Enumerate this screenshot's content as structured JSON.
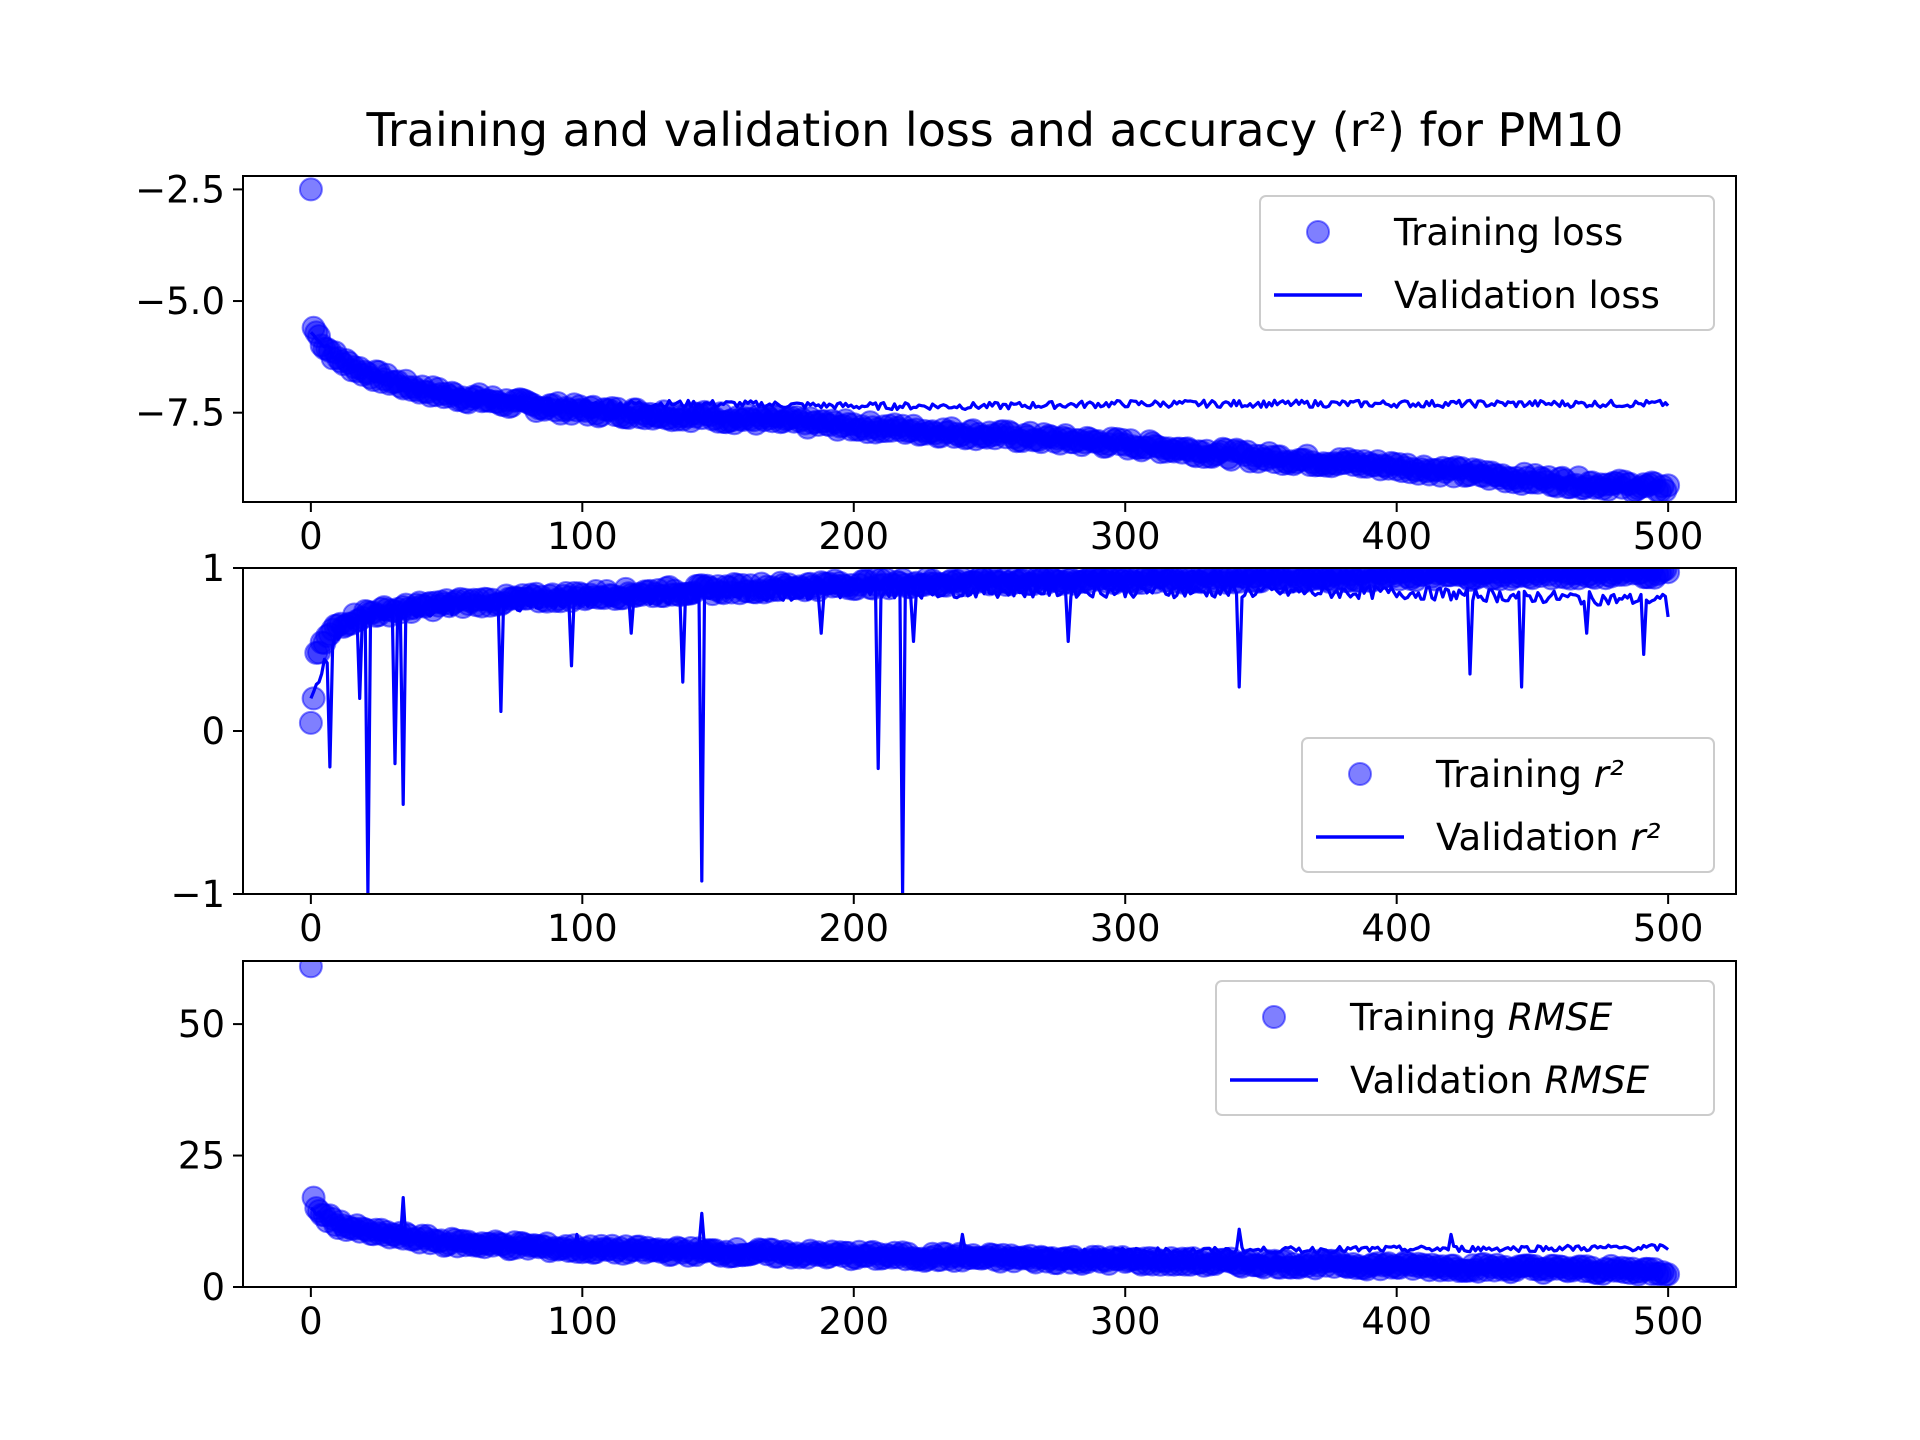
{
  "figure_title": "Training and validation loss and accuracy",
  "figure_title_math": "(r²)",
  "figure_title_suffix": "for PM10",
  "colors": {
    "series": "#0000ff",
    "axes": "#000000",
    "legend_frame": "#cccccc"
  },
  "chart_data": [
    {
      "type": "line",
      "panel": "loss",
      "xlim": [
        -25,
        525
      ],
      "ylim": [
        -9.5,
        -2.2
      ],
      "xticks": [
        0,
        100,
        200,
        300,
        400,
        500
      ],
      "yticks": [
        -2.5,
        -5.0,
        -7.5
      ],
      "ytick_labels": [
        "−2.5",
        "−5.0",
        "−7.5"
      ],
      "legend_position": "upper right",
      "series": [
        {
          "name": "Training loss",
          "style": "markers",
          "anchors": [
            [
              0,
              -2.5
            ],
            [
              1,
              -5.6
            ],
            [
              5,
              -6.0
            ],
            [
              10,
              -6.3
            ],
            [
              20,
              -6.6
            ],
            [
              35,
              -6.9
            ],
            [
              50,
              -7.1
            ],
            [
              75,
              -7.3
            ],
            [
              100,
              -7.45
            ],
            [
              150,
              -7.6
            ],
            [
              200,
              -7.8
            ],
            [
              250,
              -8.0
            ],
            [
              300,
              -8.2
            ],
            [
              350,
              -8.5
            ],
            [
              400,
              -8.7
            ],
            [
              450,
              -9.0
            ],
            [
              500,
              -9.2
            ]
          ],
          "noise": 0.12
        },
        {
          "name": "Validation loss",
          "style": "line",
          "anchors": [
            [
              0,
              -5.7
            ],
            [
              5,
              -6.0
            ],
            [
              10,
              -6.3
            ],
            [
              20,
              -6.6
            ],
            [
              35,
              -6.9
            ],
            [
              50,
              -7.0
            ],
            [
              75,
              -7.2
            ],
            [
              100,
              -7.3
            ],
            [
              150,
              -7.3
            ],
            [
              200,
              -7.35
            ],
            [
              250,
              -7.35
            ],
            [
              300,
              -7.3
            ],
            [
              350,
              -7.3
            ],
            [
              400,
              -7.3
            ],
            [
              450,
              -7.3
            ],
            [
              500,
              -7.3
            ]
          ],
          "noise": 0.08
        }
      ]
    },
    {
      "type": "line",
      "panel": "r2",
      "xlim": [
        -25,
        525
      ],
      "ylim": [
        -1,
        1
      ],
      "xticks": [
        0,
        100,
        200,
        300,
        400,
        500
      ],
      "yticks": [
        1,
        0,
        -1
      ],
      "ytick_labels": [
        "1",
        "0",
        "−1"
      ],
      "legend_position": "lower right",
      "series": [
        {
          "name": "Training",
          "name_math": "r²",
          "style": "markers",
          "anchors": [
            [
              0,
              0.05
            ],
            [
              1,
              0.2
            ],
            [
              2,
              0.45
            ],
            [
              5,
              0.55
            ],
            [
              10,
              0.65
            ],
            [
              20,
              0.72
            ],
            [
              50,
              0.78
            ],
            [
              100,
              0.83
            ],
            [
              150,
              0.87
            ],
            [
              200,
              0.9
            ],
            [
              250,
              0.92
            ],
            [
              300,
              0.93
            ],
            [
              400,
              0.95
            ],
            [
              500,
              0.97
            ]
          ],
          "noise": 0.03
        },
        {
          "name": "Validation",
          "name_math": "r²",
          "style": "line",
          "anchors": [
            [
              0,
              0.2
            ],
            [
              10,
              0.6
            ],
            [
              20,
              0.7
            ],
            [
              50,
              0.75
            ],
            [
              100,
              0.8
            ],
            [
              150,
              0.83
            ],
            [
              200,
              0.85
            ],
            [
              250,
              0.86
            ],
            [
              300,
              0.86
            ],
            [
              400,
              0.85
            ],
            [
              500,
              0.8
            ]
          ],
          "noise": 0.04,
          "spikes": [
            [
              3,
              0.3
            ],
            [
              7,
              -0.22
            ],
            [
              18,
              0.2
            ],
            [
              21,
              -1.0
            ],
            [
              31,
              -0.2
            ],
            [
              34,
              -0.45
            ],
            [
              70,
              0.12
            ],
            [
              96,
              0.4
            ],
            [
              118,
              0.6
            ],
            [
              137,
              0.3
            ],
            [
              144,
              -0.92
            ],
            [
              188,
              0.6
            ],
            [
              209,
              -0.23
            ],
            [
              218,
              -1.0
            ],
            [
              222,
              0.55
            ],
            [
              279,
              0.55
            ],
            [
              342,
              0.27
            ],
            [
              427,
              0.35
            ],
            [
              446,
              0.27
            ],
            [
              470,
              0.6
            ],
            [
              491,
              0.47
            ],
            [
              500,
              0.7
            ]
          ]
        }
      ]
    },
    {
      "type": "line",
      "panel": "rmse",
      "xlim": [
        -25,
        525
      ],
      "ylim": [
        0,
        62
      ],
      "xticks": [
        0,
        100,
        200,
        300,
        400,
        500
      ],
      "yticks": [
        0,
        25,
        50
      ],
      "ytick_labels": [
        "0",
        "25",
        "50"
      ],
      "legend_position": "upper right",
      "series": [
        {
          "name": "Training",
          "name_math": "RMSE",
          "style": "markers",
          "anchors": [
            [
              0,
              61
            ],
            [
              1,
              17
            ],
            [
              3,
              14
            ],
            [
              10,
              12
            ],
            [
              20,
              10.5
            ],
            [
              50,
              8.5
            ],
            [
              100,
              7.2
            ],
            [
              200,
              6
            ],
            [
              300,
              5
            ],
            [
              400,
              4
            ],
            [
              500,
              3
            ]
          ],
          "noise": 0.8
        },
        {
          "name": "Validation",
          "name_math": "RMSE",
          "style": "line",
          "anchors": [
            [
              0,
              15
            ],
            [
              5,
              13
            ],
            [
              10,
              11.5
            ],
            [
              20,
              10
            ],
            [
              50,
              8.6
            ],
            [
              100,
              7.5
            ],
            [
              200,
              6.8
            ],
            [
              300,
              6.8
            ],
            [
              400,
              7.2
            ],
            [
              500,
              7.5
            ]
          ],
          "noise": 0.6,
          "spikes": [
            [
              34,
              17
            ],
            [
              144,
              14
            ],
            [
              98,
              10
            ],
            [
              240,
              10
            ],
            [
              342,
              11
            ],
            [
              420,
              10
            ]
          ]
        }
      ]
    }
  ]
}
